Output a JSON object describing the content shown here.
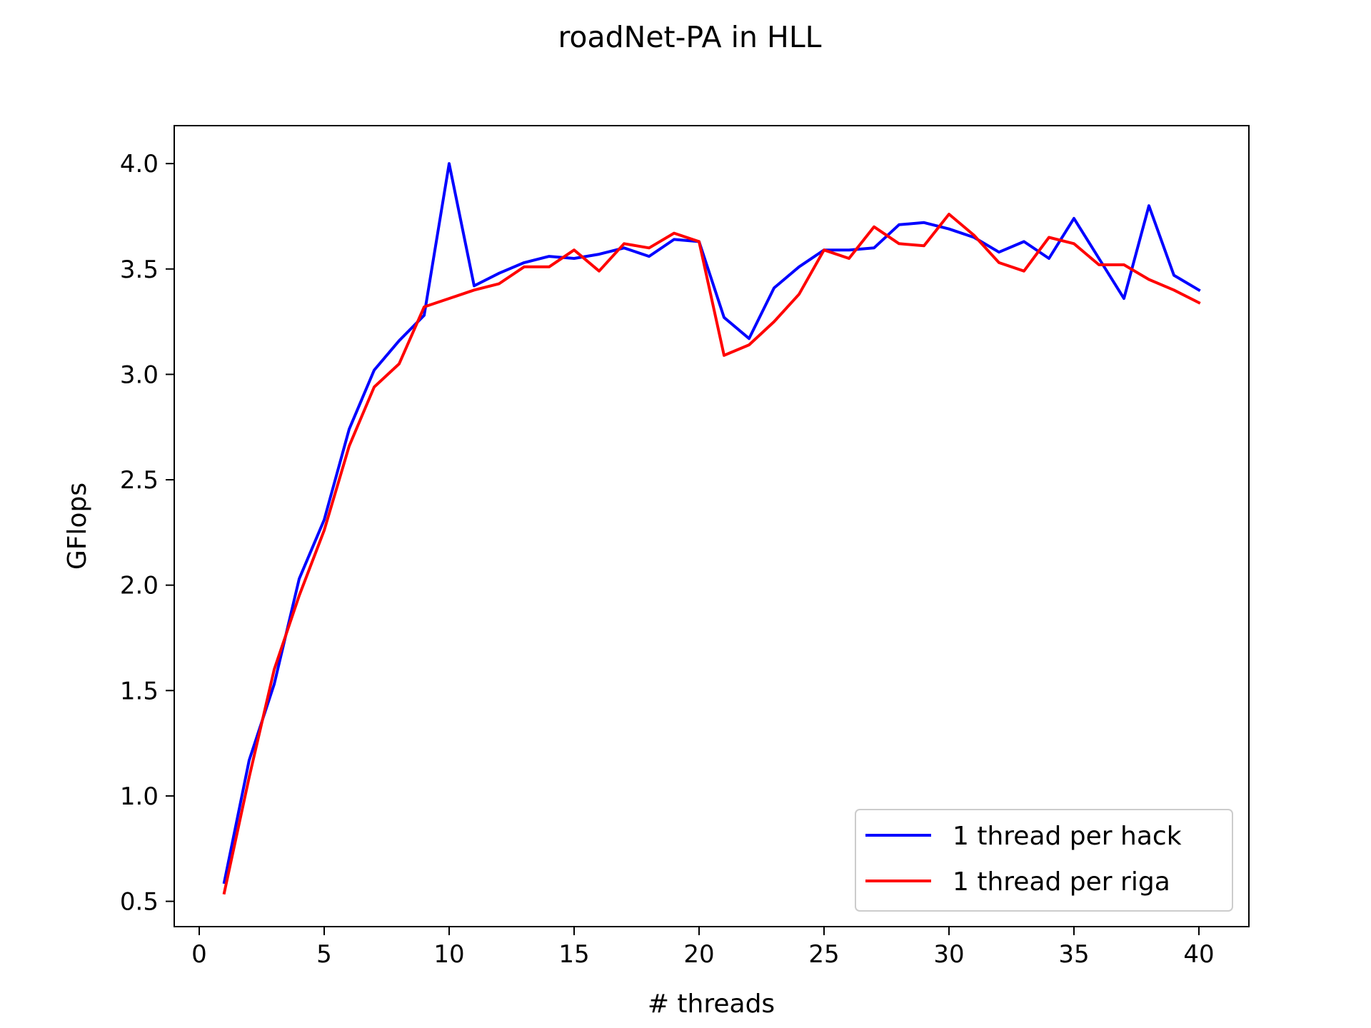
{
  "chart_data": {
    "type": "line",
    "title": "roadNet-PA in HLL",
    "xlabel": "# threads",
    "ylabel": "GFlops",
    "xlim": [
      -1,
      42
    ],
    "ylim": [
      0.38,
      4.18
    ],
    "xticks": [
      0,
      5,
      10,
      15,
      20,
      25,
      30,
      35,
      40
    ],
    "yticks": [
      0.5,
      1.0,
      1.5,
      2.0,
      2.5,
      3.0,
      3.5,
      4.0
    ],
    "xtick_labels": [
      "0",
      "5",
      "10",
      "15",
      "20",
      "25",
      "30",
      "35",
      "40"
    ],
    "ytick_labels": [
      "0.5",
      "1.0",
      "1.5",
      "2.0",
      "2.5",
      "3.0",
      "3.5",
      "4.0"
    ],
    "grid": false,
    "legend_position": "lower-right",
    "x": [
      1,
      2,
      3,
      4,
      5,
      6,
      7,
      8,
      9,
      10,
      11,
      12,
      13,
      14,
      15,
      16,
      17,
      18,
      19,
      20,
      21,
      22,
      23,
      24,
      25,
      26,
      27,
      28,
      29,
      30,
      31,
      32,
      33,
      34,
      35,
      36,
      37,
      38,
      39,
      40
    ],
    "series": [
      {
        "name": "1 thread per hack",
        "color": "#0000ff",
        "values": [
          0.59,
          1.17,
          1.53,
          2.03,
          2.31,
          2.74,
          3.02,
          3.16,
          3.28,
          4.0,
          3.42,
          3.48,
          3.53,
          3.56,
          3.55,
          3.57,
          3.6,
          3.56,
          3.64,
          3.63,
          3.27,
          3.17,
          3.41,
          3.51,
          3.59,
          3.59,
          3.6,
          3.71,
          3.72,
          3.69,
          3.65,
          3.58,
          3.63,
          3.55,
          3.74,
          3.55,
          3.36,
          3.8,
          3.47,
          3.4
        ]
      },
      {
        "name": "1 thread per riga",
        "color": "#ff0000",
        "values": [
          0.54,
          1.09,
          1.6,
          1.95,
          2.26,
          2.66,
          2.94,
          3.05,
          3.32,
          3.36,
          3.4,
          3.43,
          3.51,
          3.51,
          3.59,
          3.49,
          3.62,
          3.6,
          3.67,
          3.63,
          3.09,
          3.14,
          3.25,
          3.38,
          3.59,
          3.55,
          3.7,
          3.62,
          3.61,
          3.76,
          3.66,
          3.53,
          3.49,
          3.65,
          3.62,
          3.52,
          3.52,
          3.45,
          3.4,
          3.34
        ]
      }
    ]
  }
}
